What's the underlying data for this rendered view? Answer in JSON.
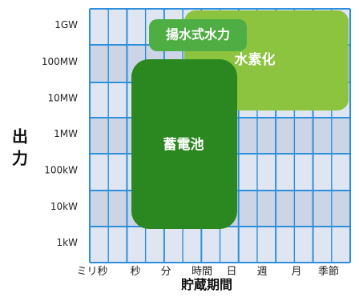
{
  "chart_data": {
    "type": "table",
    "x_axis": {
      "label": "貯蔵期間",
      "ticks": [
        "ミリ秒",
        "秒",
        "分",
        "時間",
        "日",
        "週",
        "月",
        "季節"
      ]
    },
    "y_axis": {
      "label": "出力",
      "ticks": [
        "1kW",
        "10kW",
        "100kW",
        "1MW",
        "10MW",
        "100MW",
        "1GW"
      ]
    },
    "regions": [
      {
        "name": "水素化",
        "x_range": [
          "時間",
          "季節"
        ],
        "y_range": [
          "10MW",
          "1GW"
        ],
        "color": "#8cc43f",
        "text_color": "#ffffff"
      },
      {
        "name": "揚水式水力",
        "x_range": [
          "分",
          "日"
        ],
        "y_range": [
          "100MW",
          "1GW"
        ],
        "color": "#4fae43",
        "text_color": "#ffffff"
      },
      {
        "name": "蓄電池",
        "x_range": [
          "秒",
          "日"
        ],
        "y_range": [
          "10kW",
          "100MW"
        ],
        "color": "#2b871f",
        "text_color": "#ffffff"
      }
    ],
    "grid": true,
    "band_colors": [
      "#dfe6f2",
      "#cbd5e6"
    ],
    "grid_color": "#2e8fdc"
  }
}
